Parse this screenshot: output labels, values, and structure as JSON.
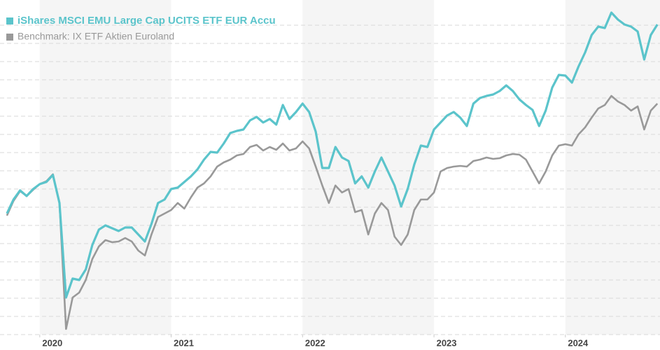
{
  "chart_data": {
    "type": "line",
    "x": [
      2019.75,
      2019.8,
      2019.85,
      2019.9,
      2019.95,
      2020,
      2020.05,
      2020.1,
      2020.15,
      2020.2,
      2020.25,
      2020.3,
      2020.35,
      2020.4,
      2020.45,
      2020.5,
      2020.55,
      2020.6,
      2020.65,
      2020.7,
      2020.75,
      2020.8,
      2020.85,
      2020.9,
      2020.95,
      2021,
      2021.05,
      2021.1,
      2021.15,
      2021.2,
      2021.25,
      2021.3,
      2021.35,
      2021.4,
      2021.45,
      2021.5,
      2021.55,
      2021.6,
      2021.65,
      2021.7,
      2021.75,
      2021.8,
      2021.85,
      2021.9,
      2021.95,
      2022,
      2022.05,
      2022.1,
      2022.15,
      2022.2,
      2022.25,
      2022.3,
      2022.35,
      2022.4,
      2022.45,
      2022.5,
      2022.55,
      2022.6,
      2022.65,
      2022.7,
      2022.75,
      2022.8,
      2022.85,
      2022.9,
      2022.95,
      2023,
      2023.05,
      2023.1,
      2023.15,
      2023.2,
      2023.25,
      2023.3,
      2023.35,
      2023.4,
      2023.45,
      2023.5,
      2023.55,
      2023.6,
      2023.65,
      2023.7,
      2023.75,
      2023.8,
      2023.85,
      2023.9,
      2023.95,
      2024,
      2024.05,
      2024.1,
      2024.15,
      2024.2,
      2024.25,
      2024.3,
      2024.35,
      2024.4,
      2024.45,
      2024.5,
      2024.55,
      2024.6,
      2024.65,
      2024.7
    ],
    "series": [
      {
        "name": "iShares MSCI EMU Large Cap UCITS ETF EUR Accu",
        "color": "#5bc4cb",
        "values": [
          173,
          193,
          206,
          198,
          208,
          215,
          218,
          228,
          188,
          53,
          80,
          78,
          93,
          128,
          150,
          156,
          152,
          148,
          153,
          153,
          143,
          133,
          158,
          188,
          193,
          208,
          210,
          218,
          226,
          236,
          250,
          261,
          260,
          273,
          288,
          291,
          293,
          306,
          311,
          303,
          308,
          300,
          328,
          308,
          318,
          330,
          318,
          290,
          238,
          238,
          268,
          253,
          248,
          216,
          226,
          210,
          233,
          253,
          233,
          213,
          183,
          208,
          243,
          270,
          268,
          293,
          303,
          313,
          318,
          310,
          298,
          330,
          338,
          341,
          343,
          348,
          356,
          348,
          336,
          328,
          321,
          298,
          320,
          353,
          371,
          370,
          360,
          383,
          403,
          428,
          440,
          438,
          460,
          450,
          443,
          440,
          433,
          393,
          428,
          443
        ]
      },
      {
        "name": "Benchmark: IX ETF Aktien Euroland",
        "color": "#999999",
        "values": [
          170,
          191,
          205,
          198,
          207,
          215,
          219,
          229,
          188,
          8,
          53,
          60,
          78,
          108,
          126,
          135,
          132,
          133,
          138,
          133,
          120,
          113,
          143,
          168,
          173,
          178,
          188,
          180,
          196,
          210,
          216,
          226,
          240,
          246,
          250,
          256,
          258,
          268,
          271,
          263,
          268,
          264,
          273,
          263,
          266,
          276,
          266,
          240,
          213,
          188,
          213,
          203,
          208,
          175,
          178,
          143,
          173,
          188,
          178,
          140,
          128,
          143,
          178,
          193,
          193,
          203,
          233,
          238,
          240,
          241,
          240,
          248,
          250,
          253,
          251,
          252,
          256,
          258,
          257,
          250,
          233,
          216,
          233,
          256,
          270,
          272,
          270,
          286,
          296,
          310,
          323,
          328,
          341,
          333,
          328,
          320,
          326,
          293,
          320,
          330
        ]
      }
    ],
    "xlim": [
      2019.74,
      2024.72
    ],
    "xticks": [
      2020,
      2021,
      2022,
      2023,
      2024
    ],
    "ylim": [
      0,
      470
    ],
    "yticks": [
      0,
      26,
      52,
      78,
      104,
      130,
      156,
      182,
      208,
      234,
      260,
      286,
      312,
      338,
      364,
      390,
      416,
      442
    ],
    "grid": true,
    "legend": "top-left"
  }
}
